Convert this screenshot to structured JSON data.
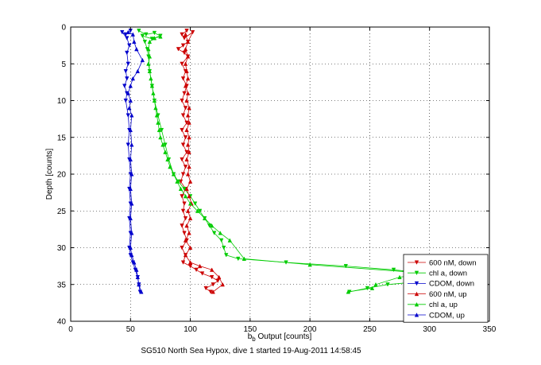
{
  "chart_data": {
    "type": "line",
    "xlabel_main": "b",
    "xlabel_sub": "b",
    "xlabel_rest": " Output [counts]",
    "ylabel": "Depth [counts]",
    "caption": "SG510 North Sea Hypox, dive 1 started 19-Aug-2011 14:58:45",
    "xlim": [
      0,
      350
    ],
    "ylim": [
      0,
      40
    ],
    "y_reversed": true,
    "x_ticks": [
      0,
      50,
      100,
      150,
      200,
      250,
      300,
      350
    ],
    "y_ticks": [
      0,
      5,
      10,
      15,
      20,
      25,
      30,
      35,
      40
    ],
    "grid": true,
    "legend_position": "bottom-right",
    "series": [
      {
        "name": "600 nM, down",
        "color": "#cc0000",
        "marker": "triangle-down",
        "points": [
          [
            97,
            0.5
          ],
          [
            93,
            1
          ],
          [
            95,
            1.5
          ],
          [
            102,
            0.7
          ],
          [
            98,
            2
          ],
          [
            94,
            2.5
          ],
          [
            90,
            3
          ],
          [
            95,
            3.5
          ],
          [
            98,
            4
          ],
          [
            93,
            5
          ],
          [
            96,
            6
          ],
          [
            94,
            7
          ],
          [
            97,
            8
          ],
          [
            95,
            9
          ],
          [
            93,
            10
          ],
          [
            96,
            11
          ],
          [
            94,
            12
          ],
          [
            97,
            13
          ],
          [
            93,
            14
          ],
          [
            96,
            15
          ],
          [
            94,
            16
          ],
          [
            97,
            17
          ],
          [
            93,
            18
          ],
          [
            96,
            19
          ],
          [
            94,
            20
          ],
          [
            92,
            21
          ],
          [
            96,
            22
          ],
          [
            93,
            23
          ],
          [
            95,
            24
          ],
          [
            94,
            25
          ],
          [
            96,
            26
          ],
          [
            93,
            27
          ],
          [
            95,
            28
          ],
          [
            97,
            29
          ],
          [
            93,
            30
          ],
          [
            96,
            31
          ],
          [
            94,
            32
          ],
          [
            100,
            32.5
          ],
          [
            105,
            33
          ],
          [
            110,
            33.5
          ],
          [
            118,
            34
          ],
          [
            123,
            34.5
          ],
          [
            119,
            35
          ],
          [
            113,
            35.5
          ],
          [
            117,
            36
          ]
        ]
      },
      {
        "name": "chl a, down",
        "color": "#00cc00",
        "marker": "triangle-down",
        "points": [
          [
            57,
            0.5
          ],
          [
            63,
            1
          ],
          [
            70,
            0.8
          ],
          [
            75,
            1.2
          ],
          [
            68,
            1.6
          ],
          [
            60,
            1.2
          ],
          [
            62,
            2
          ],
          [
            64,
            3
          ],
          [
            65,
            4
          ],
          [
            66,
            6
          ],
          [
            68,
            8
          ],
          [
            70,
            10
          ],
          [
            73,
            12
          ],
          [
            76,
            14
          ],
          [
            79,
            16
          ],
          [
            82,
            18
          ],
          [
            86,
            20
          ],
          [
            90,
            21
          ],
          [
            95,
            22
          ],
          [
            100,
            23
          ],
          [
            104,
            24
          ],
          [
            108,
            25
          ],
          [
            112,
            26
          ],
          [
            116,
            27
          ],
          [
            120,
            28
          ],
          [
            126,
            29
          ],
          [
            128,
            30
          ],
          [
            130,
            31
          ],
          [
            140,
            31.5
          ],
          [
            180,
            32
          ],
          [
            230,
            32.5
          ],
          [
            270,
            33
          ],
          [
            300,
            33.5
          ],
          [
            320,
            34
          ],
          [
            300,
            34.5
          ],
          [
            265,
            35
          ],
          [
            248,
            35.5
          ],
          [
            233,
            36
          ]
        ]
      },
      {
        "name": "CDOM, down",
        "color": "#0000cc",
        "marker": "triangle-down",
        "points": [
          [
            50,
            0.5
          ],
          [
            46,
            1
          ],
          [
            43,
            0.7
          ],
          [
            47,
            1.5
          ],
          [
            49,
            2.5
          ],
          [
            47,
            3.5
          ],
          [
            48,
            5
          ],
          [
            46,
            6
          ],
          [
            47,
            7
          ],
          [
            45,
            8
          ],
          [
            47,
            9
          ],
          [
            46,
            10
          ],
          [
            48,
            12
          ],
          [
            49,
            14
          ],
          [
            48,
            16
          ],
          [
            49,
            18
          ],
          [
            50,
            20
          ],
          [
            49,
            22
          ],
          [
            50,
            24
          ],
          [
            49,
            26
          ],
          [
            50,
            28
          ],
          [
            49,
            30
          ],
          [
            50,
            31
          ],
          [
            52,
            32
          ],
          [
            54,
            33
          ],
          [
            56,
            34
          ],
          [
            57,
            35
          ],
          [
            58,
            36
          ]
        ]
      },
      {
        "name": "600 nM, up",
        "color": "#cc0000",
        "marker": "triangle-up",
        "points": [
          [
            119,
            36
          ],
          [
            127,
            35
          ],
          [
            124,
            34
          ],
          [
            118,
            33
          ],
          [
            108,
            32.5
          ],
          [
            100,
            32
          ],
          [
            96,
            31
          ],
          [
            100,
            30
          ],
          [
            96,
            29
          ],
          [
            99,
            28
          ],
          [
            97,
            27
          ],
          [
            100,
            26
          ],
          [
            98,
            25
          ],
          [
            101,
            24
          ],
          [
            99,
            23
          ],
          [
            97,
            22
          ],
          [
            100,
            21
          ],
          [
            98,
            20
          ],
          [
            99,
            19
          ],
          [
            97,
            18
          ],
          [
            99,
            17
          ],
          [
            98,
            16
          ],
          [
            99,
            15
          ],
          [
            97,
            14
          ],
          [
            99,
            13
          ],
          [
            98,
            12
          ],
          [
            99,
            11
          ],
          [
            97,
            10
          ],
          [
            98,
            9
          ],
          [
            96,
            8
          ],
          [
            98,
            7
          ],
          [
            97,
            6
          ],
          [
            96,
            5
          ],
          [
            98,
            4
          ],
          [
            96,
            3
          ],
          [
            98,
            2
          ],
          [
            96,
            1
          ]
        ]
      },
      {
        "name": "chl a, up",
        "color": "#00cc00",
        "marker": "triangle-up",
        "points": [
          [
            232,
            36
          ],
          [
            252,
            35.5
          ],
          [
            255,
            35
          ],
          [
            275,
            34
          ],
          [
            300,
            33.5
          ],
          [
            200,
            32.3
          ],
          [
            145,
            31.5
          ],
          [
            133,
            29
          ],
          [
            125,
            28
          ],
          [
            118,
            27
          ],
          [
            112,
            26
          ],
          [
            106,
            25
          ],
          [
            100,
            24
          ],
          [
            96,
            23
          ],
          [
            92,
            22
          ],
          [
            89,
            21
          ],
          [
            86,
            20
          ],
          [
            83,
            19
          ],
          [
            81,
            18
          ],
          [
            79,
            17
          ],
          [
            77,
            16
          ],
          [
            75,
            15
          ],
          [
            74,
            14
          ],
          [
            73,
            13
          ],
          [
            72,
            12
          ],
          [
            71,
            11
          ],
          [
            70,
            10
          ],
          [
            69,
            9
          ],
          [
            68,
            8
          ],
          [
            67,
            7
          ],
          [
            66,
            6
          ],
          [
            65,
            5
          ],
          [
            66,
            4
          ],
          [
            65,
            3
          ],
          [
            66,
            2
          ],
          [
            70,
            1.5
          ],
          [
            75,
            1.3
          ]
        ]
      },
      {
        "name": "CDOM, up",
        "color": "#0000cc",
        "marker": "triangle-up",
        "points": [
          [
            59,
            36
          ],
          [
            57,
            35
          ],
          [
            56,
            34
          ],
          [
            55,
            33
          ],
          [
            53,
            32
          ],
          [
            51,
            31
          ],
          [
            50,
            30
          ],
          [
            51,
            28
          ],
          [
            50,
            26
          ],
          [
            51,
            24
          ],
          [
            50,
            22
          ],
          [
            51,
            20
          ],
          [
            50,
            18
          ],
          [
            51,
            16
          ],
          [
            50,
            14
          ],
          [
            51,
            12
          ],
          [
            49,
            11
          ],
          [
            50,
            10
          ],
          [
            48,
            9
          ],
          [
            50,
            8
          ],
          [
            52,
            7
          ],
          [
            56,
            6
          ],
          [
            60,
            4.5
          ],
          [
            55,
            3
          ],
          [
            53,
            2
          ],
          [
            52,
            1
          ],
          [
            48,
            0.7
          ]
        ]
      }
    ]
  }
}
